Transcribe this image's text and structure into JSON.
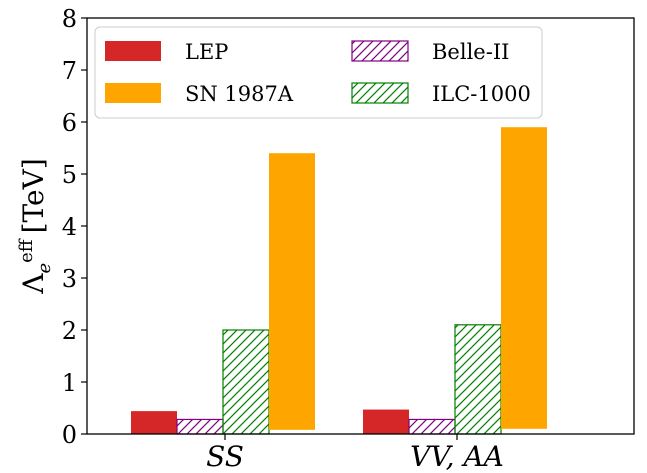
{
  "chart_data": {
    "type": "bar",
    "categories": [
      "SS",
      "VV, AA"
    ],
    "ylabel": "Λ_e^eff [TeV]",
    "ylabel_main": "Λ",
    "ylabel_sub": "e",
    "ylabel_sup": "eff",
    "ylabel_unit": "[TeV]",
    "ylim": [
      0,
      8
    ],
    "yticks": [
      "0",
      "1",
      "2",
      "3",
      "4",
      "5",
      "6",
      "7",
      "8"
    ],
    "grid": false,
    "legend_position": "top-left",
    "series": [
      {
        "name": "LEP",
        "color": "#d62728",
        "style": "solid",
        "values": [
          0.44,
          0.47
        ]
      },
      {
        "name": "Belle-II",
        "color": "#800080",
        "style": "hatch",
        "values": [
          0.28,
          0.28
        ]
      },
      {
        "name": "ILC-1000",
        "color": "#008000",
        "style": "hatch",
        "values": [
          2.0,
          2.1
        ]
      },
      {
        "name": "SN 1987A",
        "color": "#ffa500",
        "style": "floating",
        "values": [
          [
            0.08,
            5.4
          ],
          [
            0.1,
            5.9
          ]
        ]
      }
    ],
    "legend_order": [
      "LEP",
      "SN 1987A",
      "Belle-II",
      "ILC-1000"
    ]
  }
}
